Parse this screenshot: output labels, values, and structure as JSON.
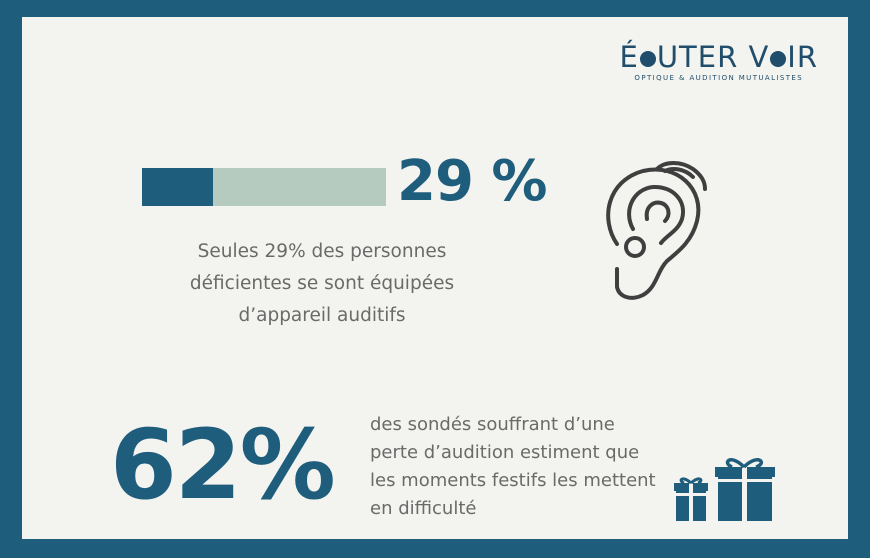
{
  "logo": {
    "brand_left": "É",
    "brand_mid": "UTER V",
    "brand_right": "IR",
    "tagline": "OPTIQUE & AUDITION MUTUALISTES"
  },
  "stat1": {
    "value": "29 %",
    "progress_fraction": 0.29,
    "description": "Seules 29% des personnes déficientes se sont équipées d’appareil auditifs",
    "icon": "hearing-aid-icon"
  },
  "stat2": {
    "value": "62%",
    "description": "des sondés souffrant d’une perte d’audition estiment que les moments festifs les mettent en difficulté",
    "icon": "gifts-icon"
  },
  "colors": {
    "primary": "#1f5d7d",
    "bar_track": "#b6cbc0",
    "background": "#f3f3ef",
    "text": "#6a6a6a"
  }
}
